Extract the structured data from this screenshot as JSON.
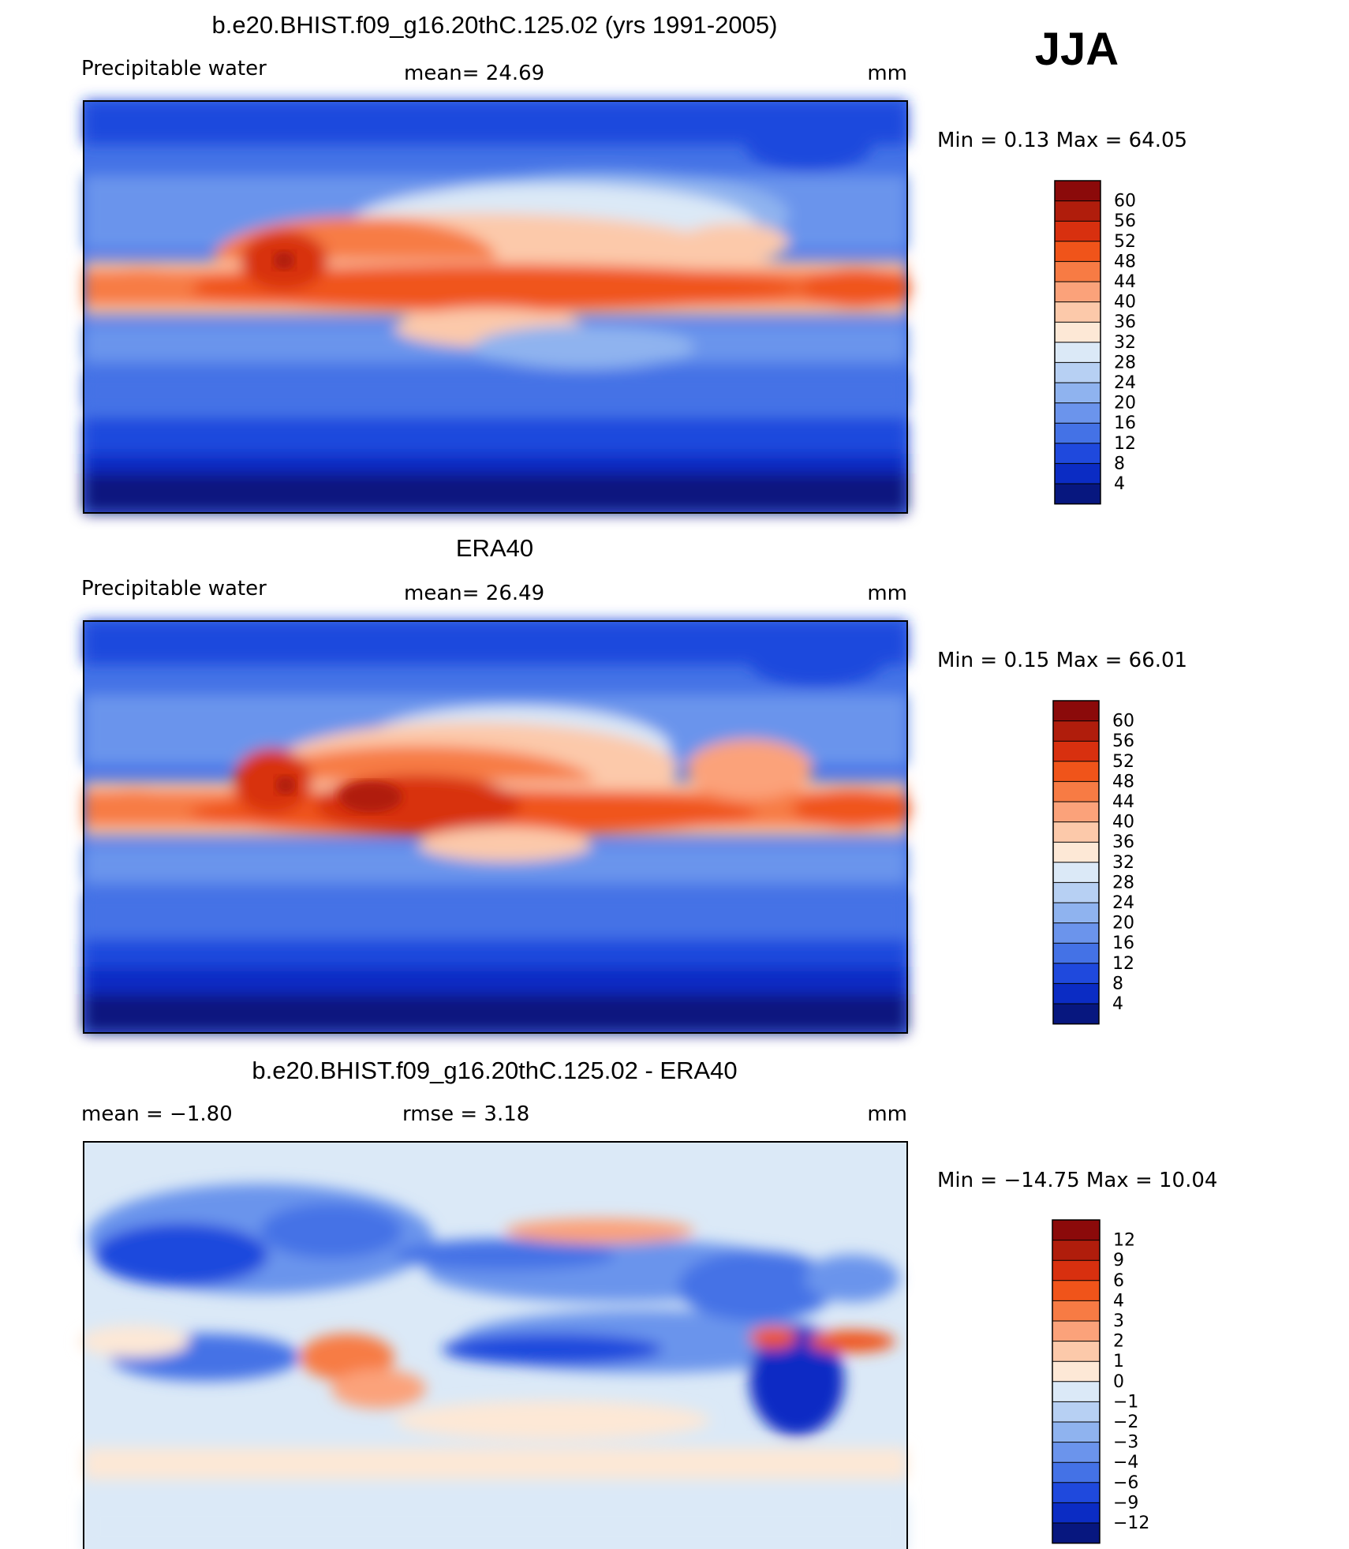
{
  "season_label": "JJA",
  "panels": [
    {
      "title": "b.e20.BHIST.f09_g16.20thC.125.02 (yrs 1991-2005)",
      "left_label": "Precipitable  water",
      "mid_label": "mean=   24.69",
      "unit": "mm",
      "minmax": "Min  =    0.13  Max  =   64.05"
    },
    {
      "title": "ERA40",
      "left_label": "Precipitable  water",
      "mid_label": "mean=   26.49",
      "unit": "mm",
      "minmax": "Min  =    0.15  Max  =   66.01"
    },
    {
      "title": "b.e20.BHIST.f09_g16.20thC.125.02 - ERA40",
      "left_label": "mean  =    −1.80",
      "mid_label": "rmse  =     3.18",
      "unit": "mm",
      "minmax": "Min  = −14.75  Max  =    10.04"
    }
  ],
  "chart_data": [
    {
      "type": "heatmap",
      "title": "b.e20.BHIST.f09_g16.20thC.125.02 (yrs 1991-2005)",
      "variable": "Precipitable water",
      "season": "JJA",
      "units": "mm",
      "mean": 24.69,
      "min": 0.13,
      "max": 64.05,
      "colorbar_levels": [
        60,
        56,
        52,
        48,
        44,
        40,
        36,
        32,
        28,
        24,
        20,
        16,
        12,
        8,
        4
      ],
      "colorbar_colors": [
        "#8b0a0a",
        "#b01d0c",
        "#d8300f",
        "#f0541a",
        "#f77b44",
        "#fba27a",
        "#fcc9aa",
        "#fde8d6",
        "#dbe9f7",
        "#b7d0f3",
        "#8fb3ef",
        "#6b94ec",
        "#4472e6",
        "#1f49dd",
        "#0b2cc4",
        "#07177f"
      ]
    },
    {
      "type": "heatmap",
      "title": "ERA40",
      "variable": "Precipitable water",
      "season": "JJA",
      "units": "mm",
      "mean": 26.49,
      "min": 0.15,
      "max": 66.01,
      "colorbar_levels": [
        60,
        56,
        52,
        48,
        44,
        40,
        36,
        32,
        28,
        24,
        20,
        16,
        12,
        8,
        4
      ],
      "colorbar_colors": [
        "#8b0a0a",
        "#b01d0c",
        "#d8300f",
        "#f0541a",
        "#f77b44",
        "#fba27a",
        "#fcc9aa",
        "#fde8d6",
        "#dbe9f7",
        "#b7d0f3",
        "#8fb3ef",
        "#6b94ec",
        "#4472e6",
        "#1f49dd",
        "#0b2cc4",
        "#07177f"
      ]
    },
    {
      "type": "heatmap",
      "title": "b.e20.BHIST.f09_g16.20thC.125.02 - ERA40",
      "season": "JJA",
      "units": "mm",
      "mean": -1.8,
      "rmse": 3.18,
      "min": -14.75,
      "max": 10.04,
      "colorbar_levels": [
        "12",
        "9",
        "6",
        "4",
        "3",
        "2",
        "1",
        "0",
        "−1",
        "−2",
        "−3",
        "−4",
        "−6",
        "−9",
        "−12"
      ],
      "colorbar_colors": [
        "#8b0a0a",
        "#b01d0c",
        "#d8300f",
        "#f0541a",
        "#f77b44",
        "#fba27a",
        "#fcc9aa",
        "#fde8d6",
        "#dbe9f7",
        "#b7d0f3",
        "#8fb3ef",
        "#6b94ec",
        "#4472e6",
        "#1f49dd",
        "#0b2cc4",
        "#07177f"
      ]
    }
  ]
}
